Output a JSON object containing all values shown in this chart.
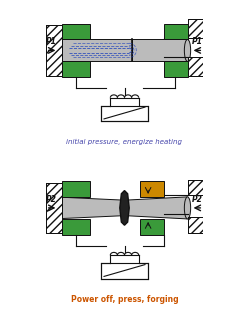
{
  "fig_width": 2.49,
  "fig_height": 3.15,
  "dpi": 100,
  "bg_color": "#e8e8e8",
  "white": "#ffffff",
  "green_color": "#3a9a3a",
  "gray_rod": "#999999",
  "gray_rod_light": "#bbbbbb",
  "dark": "#111111",
  "blue_dash": "#2244bb",
  "hatch_fg": "#444444",
  "label1_color": "#4444aa",
  "label2_color": "#cc5500",
  "orange_color": "#cc8800",
  "text1": "initial pressure, energize heating",
  "text2": "Power off, press, forging",
  "P1": "P1",
  "P2": "P2"
}
